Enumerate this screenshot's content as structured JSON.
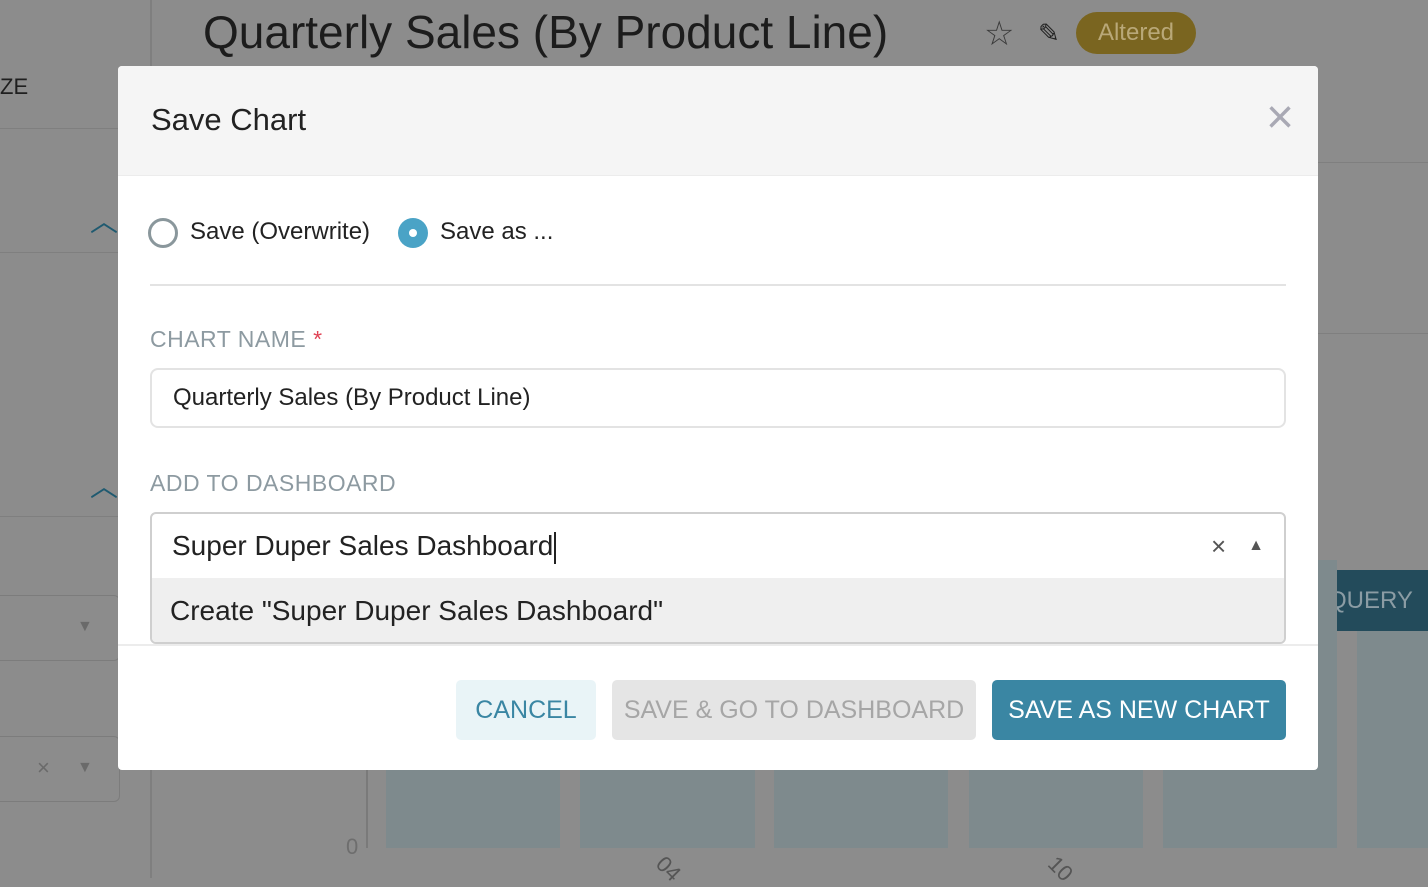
{
  "header": {
    "title": "Quarterly Sales (By Product Line)",
    "badge": "Altered",
    "icons": [
      "star-icon",
      "edit-icon"
    ]
  },
  "sidebar": {
    "label_partial": "ZE",
    "icons": [
      "chevron-up-icon",
      "chevron-up-icon",
      "caret-down-icon",
      "clear-icon",
      "caret-down-icon"
    ],
    "clear_glyph": "×"
  },
  "chart_bg": {
    "y_tick": "0",
    "x_ticks": [
      "04",
      "10"
    ],
    "query_button": "QUERY"
  },
  "modal": {
    "title": "Save Chart",
    "close_glyph": "×",
    "radio_overwrite": "Save (Overwrite)",
    "radio_saveas": "Save as ...",
    "selected_option": "Save as ...",
    "chart_name_label": "CHART NAME",
    "required_mark": "*",
    "chart_name_value": "Quarterly Sales (By Product Line)",
    "dashboard_label": "ADD TO DASHBOARD",
    "dashboard_value": "Super Duper Sales Dashboard",
    "clear_glyph": "×",
    "dropdown_option": "Create \"Super Duper Sales Dashboard\"",
    "cancel": "CANCEL",
    "save_go": "SAVE & GO TO DASHBOARD",
    "save_new": "SAVE AS NEW CHART"
  },
  "colors": {
    "primary": "#3a86a3",
    "primary_light": "#e9f4f7",
    "disabled": "#e5e5e5",
    "required": "#e04355",
    "badge": "#7a6520"
  }
}
